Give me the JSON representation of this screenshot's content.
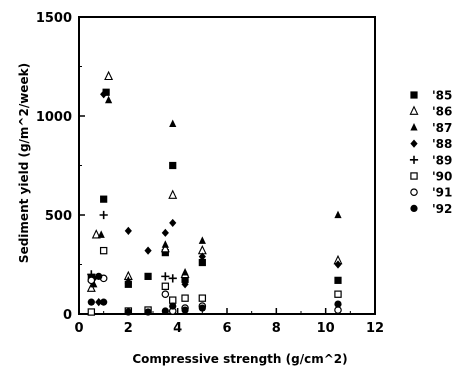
{
  "chart_data": {
    "type": "scatter",
    "xlabel": "Compressive strength (g/cm^2)",
    "ylabel": "Sediment yield (g/m^2/week)",
    "xlim": [
      0,
      12
    ],
    "ylim": [
      0,
      1500
    ],
    "xticks": [
      0,
      2,
      4,
      6,
      8,
      10,
      12
    ],
    "yticks": [
      0,
      500,
      1000,
      1500
    ],
    "grid": false,
    "legend_position": "right",
    "series": [
      {
        "name": "'85",
        "marker": "filled-square",
        "color": "#000000",
        "points": [
          [
            0.5,
            180
          ],
          [
            1.0,
            580
          ],
          [
            1.1,
            1120
          ],
          [
            2.0,
            150
          ],
          [
            2.8,
            190
          ],
          [
            3.5,
            310
          ],
          [
            3.8,
            750
          ],
          [
            4.3,
            175
          ],
          [
            5.0,
            260
          ],
          [
            10.5,
            170
          ]
        ]
      },
      {
        "name": "'86",
        "marker": "open-triangle",
        "color": "#000000",
        "points": [
          [
            0.5,
            130
          ],
          [
            0.7,
            400
          ],
          [
            1.2,
            1200
          ],
          [
            2.0,
            190
          ],
          [
            3.5,
            330
          ],
          [
            3.8,
            600
          ],
          [
            4.3,
            200
          ],
          [
            5.0,
            320
          ],
          [
            10.5,
            270
          ]
        ]
      },
      {
        "name": "'87",
        "marker": "filled-triangle",
        "color": "#000000",
        "points": [
          [
            0.6,
            150
          ],
          [
            0.9,
            400
          ],
          [
            1.2,
            1080
          ],
          [
            2.0,
            170
          ],
          [
            3.5,
            350
          ],
          [
            3.8,
            960
          ],
          [
            4.3,
            210
          ],
          [
            5.0,
            370
          ],
          [
            10.5,
            500
          ]
        ]
      },
      {
        "name": "'88",
        "marker": "filled-diamond",
        "color": "#000000",
        "points": [
          [
            0.6,
            180
          ],
          [
            0.8,
            60
          ],
          [
            1.0,
            1110
          ],
          [
            2.0,
            420
          ],
          [
            2.8,
            320
          ],
          [
            3.5,
            410
          ],
          [
            3.8,
            460
          ],
          [
            4.3,
            150
          ],
          [
            5.0,
            290
          ],
          [
            10.5,
            250
          ]
        ]
      },
      {
        "name": "'89",
        "marker": "plus",
        "color": "#000000",
        "points": [
          [
            0.5,
            200
          ],
          [
            1.0,
            500
          ],
          [
            3.5,
            190
          ],
          [
            3.8,
            180
          ]
        ]
      },
      {
        "name": "'90",
        "marker": "open-square",
        "color": "#000000",
        "points": [
          [
            0.5,
            10
          ],
          [
            1.0,
            320
          ],
          [
            2.0,
            15
          ],
          [
            2.8,
            20
          ],
          [
            3.5,
            140
          ],
          [
            3.8,
            70
          ],
          [
            4.3,
            80
          ],
          [
            5.0,
            80
          ],
          [
            10.5,
            100
          ]
        ]
      },
      {
        "name": "'91",
        "marker": "open-circle",
        "color": "#000000",
        "points": [
          [
            0.5,
            170
          ],
          [
            1.0,
            180
          ],
          [
            3.5,
            100
          ],
          [
            3.8,
            15
          ],
          [
            4.3,
            30
          ],
          [
            5.0,
            40
          ],
          [
            10.5,
            20
          ]
        ]
      },
      {
        "name": "'92",
        "marker": "filled-circle",
        "color": "#000000",
        "points": [
          [
            0.5,
            60
          ],
          [
            0.8,
            190
          ],
          [
            1.0,
            60
          ],
          [
            2.0,
            10
          ],
          [
            2.8,
            10
          ],
          [
            3.5,
            15
          ],
          [
            3.8,
            40
          ],
          [
            4.3,
            20
          ],
          [
            5.0,
            30
          ],
          [
            10.5,
            50
          ]
        ]
      }
    ]
  }
}
